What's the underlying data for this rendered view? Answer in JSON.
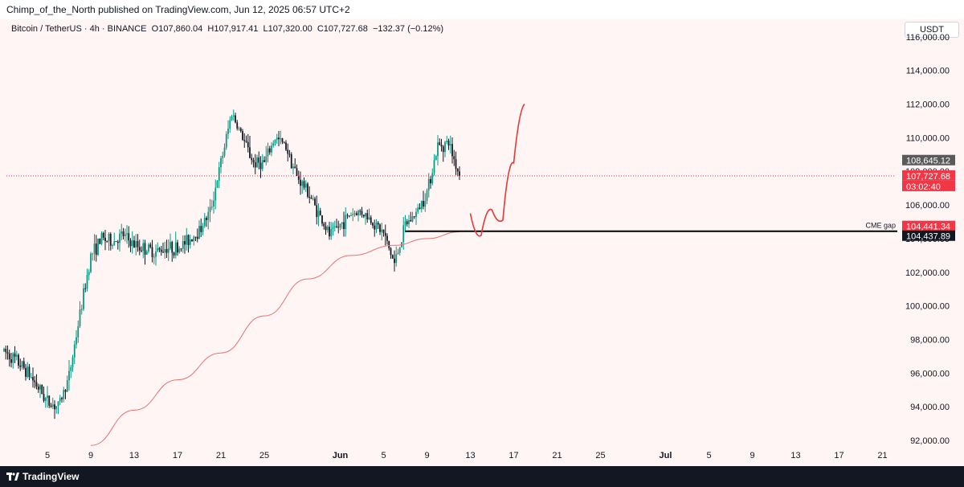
{
  "header": {
    "publisher_line": "Chimp_of_the_North published on TradingView.com, Jun 12, 2025 06:57 UTC+2"
  },
  "legend": {
    "symbol": "Bitcoin / TetherUS · 4h · BINANCE",
    "open": "O107,860.04",
    "high": "H107,917.41",
    "low": "L107,320.00",
    "close": "C107,727.68",
    "change": "−132.37 (−0.12%)"
  },
  "currency_unit": "USDT",
  "footer": {
    "brand": "TradingView"
  },
  "colors": {
    "up": "#089981",
    "down": "#131722",
    "ma": "#e57373",
    "drawing": "#e53935",
    "bg": "#fff5f5"
  },
  "chart_data": {
    "type": "candlestick",
    "title": "Bitcoin / TetherUS · 4h · BINANCE",
    "y_axis": {
      "ticks": [
        "92,000.00",
        "94,000.00",
        "96,000.00",
        "98,000.00",
        "100,000.00",
        "102,000.00",
        "104,000.00",
        "106,000.00",
        "108,000.00",
        "110,000.00",
        "112,000.00",
        "114,000.00",
        "116,000.00"
      ],
      "range": [
        91500,
        116500
      ]
    },
    "x_axis": {
      "ticks": [
        {
          "label": "5",
          "date": "2025-05-05"
        },
        {
          "label": "9",
          "date": "2025-05-09"
        },
        {
          "label": "13",
          "date": "2025-05-13"
        },
        {
          "label": "17",
          "date": "2025-05-17"
        },
        {
          "label": "21",
          "date": "2025-05-21"
        },
        {
          "label": "25",
          "date": "2025-05-25"
        },
        {
          "label": "Jun",
          "date": "2025-06-01"
        },
        {
          "label": "5",
          "date": "2025-06-05"
        },
        {
          "label": "9",
          "date": "2025-06-09"
        },
        {
          "label": "13",
          "date": "2025-06-13"
        },
        {
          "label": "17",
          "date": "2025-06-17"
        },
        {
          "label": "21",
          "date": "2025-06-21"
        },
        {
          "label": "25",
          "date": "2025-06-25"
        },
        {
          "label": "Jul",
          "date": "2025-07-01"
        },
        {
          "label": "5",
          "date": "2025-07-05"
        },
        {
          "label": "9",
          "date": "2025-07-09"
        },
        {
          "label": "13",
          "date": "2025-07-13"
        },
        {
          "label": "17",
          "date": "2025-07-17"
        },
        {
          "label": "21",
          "date": "2025-07-21"
        }
      ]
    },
    "price_path": [
      [
        "2025-05-01",
        97300
      ],
      [
        "2025-05-02",
        96800
      ],
      [
        "2025-05-03",
        96200
      ],
      [
        "2025-05-04",
        95300
      ],
      [
        "2025-05-05",
        94300
      ],
      [
        "2025-05-06",
        94000
      ],
      [
        "2025-05-07",
        95800
      ],
      [
        "2025-05-08",
        99500
      ],
      [
        "2025-05-09",
        103000
      ],
      [
        "2025-05-10",
        104000
      ],
      [
        "2025-05-11",
        103800
      ],
      [
        "2025-05-12",
        104200
      ],
      [
        "2025-05-13",
        103600
      ],
      [
        "2025-05-14",
        103400
      ],
      [
        "2025-05-15",
        103200
      ],
      [
        "2025-05-16",
        103500
      ],
      [
        "2025-05-17",
        103400
      ],
      [
        "2025-05-18",
        103900
      ],
      [
        "2025-05-19",
        104500
      ],
      [
        "2025-05-20",
        105600
      ],
      [
        "2025-05-21",
        108500
      ],
      [
        "2025-05-22",
        111500
      ],
      [
        "2025-05-23",
        110000
      ],
      [
        "2025-05-24",
        108500
      ],
      [
        "2025-05-25",
        108500
      ],
      [
        "2025-05-26",
        110000
      ],
      [
        "2025-05-27",
        109500
      ],
      [
        "2025-05-28",
        107700
      ],
      [
        "2025-05-29",
        106800
      ],
      [
        "2025-05-30",
        105500
      ],
      [
        "2025-05-31",
        104200
      ],
      [
        "2025-06-01",
        104800
      ],
      [
        "2025-06-02",
        105500
      ],
      [
        "2025-06-03",
        105600
      ],
      [
        "2025-06-04",
        105000
      ],
      [
        "2025-06-05",
        104300
      ],
      [
        "2025-06-06",
        102500
      ],
      [
        "2025-06-07",
        104800
      ],
      [
        "2025-06-08",
        105500
      ],
      [
        "2025-06-09",
        106800
      ],
      [
        "2025-06-10",
        109500
      ],
      [
        "2025-06-11",
        109700
      ],
      [
        "2025-06-12",
        107727.68
      ]
    ],
    "moving_average": [
      [
        "2025-05-09",
        91700
      ],
      [
        "2025-05-13",
        93800
      ],
      [
        "2025-05-17",
        95600
      ],
      [
        "2025-05-21",
        97200
      ],
      [
        "2025-05-25",
        99400
      ],
      [
        "2025-05-29",
        101600
      ],
      [
        "2025-06-02",
        103000
      ],
      [
        "2025-06-06",
        103600
      ],
      [
        "2025-06-09",
        104000
      ],
      [
        "2025-06-12",
        104400
      ]
    ],
    "projection_path": [
      [
        "2025-06-13",
        105500
      ],
      [
        "2025-06-14",
        104200
      ],
      [
        "2025-06-15",
        105700
      ],
      [
        "2025-06-16",
        105100
      ],
      [
        "2025-06-17",
        108500
      ],
      [
        "2025-06-18",
        112000
      ]
    ],
    "cme_gap": {
      "label": "CME gap",
      "price": 104437.89,
      "from": "2025-06-07"
    },
    "price_labels": [
      {
        "text": "108,645.12",
        "price": 108645.12,
        "bg": "#5a5a5a",
        "fg": "#ffffff"
      },
      {
        "text": "107,727.68",
        "price": 107727.68,
        "bg": "#f23645",
        "fg": "#ffffff"
      },
      {
        "text": "03:02:40",
        "price": 107727.68,
        "bg": "#f23645",
        "fg": "#ffffff",
        "sub": true
      },
      {
        "text": "104,441.34",
        "price": 104441.34,
        "bg": "#f23645",
        "fg": "#ffffff"
      },
      {
        "text": "104,437.89",
        "price": 104437.89,
        "bg": "#131722",
        "fg": "#ffffff"
      }
    ],
    "last_price": 107727.68,
    "grid": false
  }
}
